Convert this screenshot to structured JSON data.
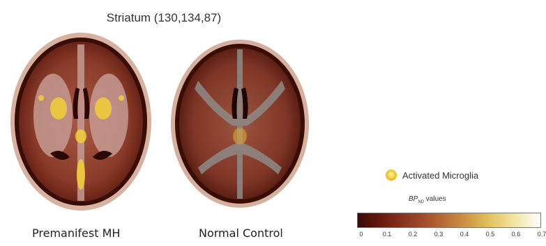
{
  "title": "Striatum (130,134,87)",
  "images": [
    {
      "caption": "Premanifest MH",
      "icon": "brain-axial-pet-scan"
    },
    {
      "caption": "Normal Control",
      "icon": "brain-axial-pet-scan"
    }
  ],
  "legend": {
    "label": "Activated Microglia",
    "colorbar_title": "BP",
    "colorbar_subscript": "ND",
    "colorbar_suffix": "values",
    "ticks": [
      "0",
      "0.1",
      "0.2",
      "0.3",
      "0.4",
      "0.5",
      "0.6",
      "0.7"
    ],
    "colors": {
      "low": "#3a0a05",
      "mid": "#c98c40",
      "high": "#ffffff",
      "dot": "#f2cf3a"
    }
  }
}
